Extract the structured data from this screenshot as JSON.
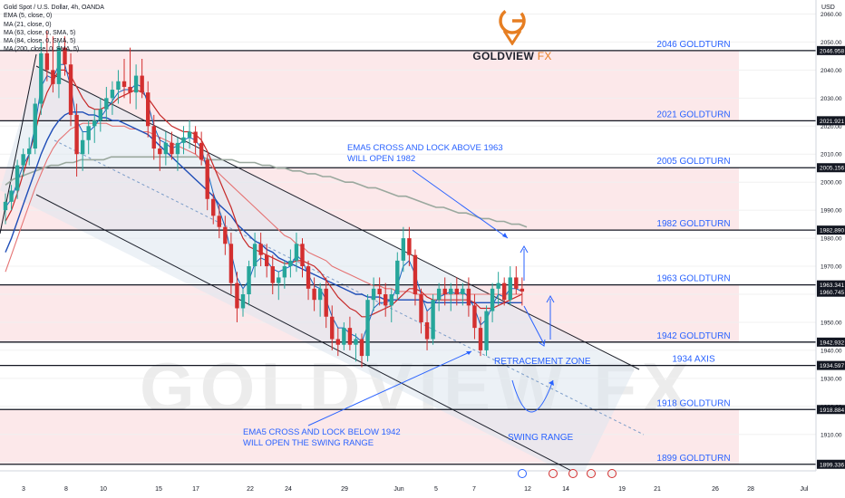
{
  "header": {
    "legend": [
      "Gold Spot / U.S. Dollar, 4h, OANDA",
      "EMA (5, close, 0)",
      "MA (21, close, 0)",
      "MA (63, close, 0, SMA, 5)",
      "MA (84, close, 0, SMA, 5)",
      "MA (200, close, 0, SMA, 5)"
    ],
    "currency": "USD",
    "brand_main": "GOLDVIEW",
    "brand_fx": "FX",
    "watermark": "GOLDVIEW FX"
  },
  "chart_data": {
    "type": "candlestick",
    "ylim": [
      1897,
      2065
    ],
    "x_tick_labels": [
      "3",
      "8",
      "10",
      "15",
      "17",
      "22",
      "24",
      "29",
      "Jun",
      "5",
      "7",
      "12",
      "14",
      "19",
      "21",
      "26",
      "28",
      "Jul"
    ],
    "y_tick_labels": [
      2060,
      2050,
      2040,
      2030,
      2020,
      2010,
      2000,
      1990,
      1980,
      1970,
      1960,
      1950,
      1940,
      1930,
      1920,
      1910,
      1900
    ],
    "levels": [
      {
        "label": "2046 GOLDTURN",
        "value": 2046.958,
        "tag": "2046.958"
      },
      {
        "label": "2021 GOLDTURN",
        "value": 2021.921,
        "tag": "2021.921"
      },
      {
        "label": "2005 GOLDTURN",
        "value": 2005.156,
        "tag": "2005.156"
      },
      {
        "label": "1982 GOLDTURN",
        "value": 1982.89,
        "tag": "1982.890"
      },
      {
        "label": "1963 GOLDTURN",
        "value": 1963.341,
        "tag": "1963.341"
      },
      {
        "label": "1942 GOLDTURN",
        "value": 1942.932,
        "tag": "1942.932"
      },
      {
        "label": "1934 AXIS",
        "value": 1934.597,
        "tag": "1934.597"
      },
      {
        "label": "1918 GOLDTURN",
        "value": 1918.884,
        "tag": "1918.884"
      },
      {
        "label": "1899 GOLDTURN",
        "value": 1899.336,
        "tag": "1899.336"
      }
    ],
    "current_price": {
      "value": 1960.745,
      "tag": "1960.745"
    },
    "annotations": [
      {
        "text": "EMA5 CROSS AND LOCK ABOVE 1963",
        "text2": "WILL OPEN 1982"
      },
      {
        "text": "RETRACEMENT ZONE"
      },
      {
        "text": "EMA5 CROSS AND LOCK BELOW 1942",
        "text2": "WILL OPEN THE SWING RANGE"
      },
      {
        "text": "SWING RANGE"
      }
    ],
    "candles": [
      [
        1990,
        1996,
        1985,
        1993
      ],
      [
        1993,
        1999,
        1990,
        1997
      ],
      [
        1997,
        2008,
        1994,
        2006
      ],
      [
        2006,
        2012,
        2002,
        2010
      ],
      [
        2010,
        2016,
        2006,
        2012
      ],
      [
        2012,
        2030,
        2010,
        2028
      ],
      [
        2028,
        2050,
        2024,
        2046
      ],
      [
        2046,
        2054,
        2036,
        2040
      ],
      [
        2040,
        2052,
        2032,
        2035
      ],
      [
        2035,
        2050,
        2030,
        2048
      ],
      [
        2048,
        2052,
        2038,
        2042
      ],
      [
        2042,
        2046,
        2020,
        2024
      ],
      [
        2024,
        2028,
        2002,
        2010
      ],
      [
        2010,
        2018,
        2004,
        2015
      ],
      [
        2015,
        2022,
        2010,
        2020
      ],
      [
        2020,
        2026,
        2014,
        2022
      ],
      [
        2022,
        2030,
        2018,
        2026
      ],
      [
        2026,
        2034,
        2022,
        2030
      ],
      [
        2030,
        2036,
        2024,
        2033
      ],
      [
        2033,
        2040,
        2028,
        2036
      ],
      [
        2036,
        2044,
        2030,
        2034
      ],
      [
        2034,
        2048,
        2028,
        2032
      ],
      [
        2032,
        2042,
        2026,
        2038
      ],
      [
        2038,
        2044,
        2030,
        2032
      ],
      [
        2032,
        2036,
        2016,
        2020
      ],
      [
        2020,
        2024,
        2008,
        2012
      ],
      [
        2012,
        2016,
        2004,
        2010
      ],
      [
        2010,
        2018,
        2006,
        2014
      ],
      [
        2014,
        2018,
        2008,
        2010
      ],
      [
        2010,
        2016,
        2004,
        2014
      ],
      [
        2014,
        2020,
        2010,
        2016
      ],
      [
        2016,
        2022,
        2012,
        2018
      ],
      [
        2018,
        2020,
        2010,
        2014
      ],
      [
        2014,
        2018,
        2006,
        2008
      ],
      [
        2008,
        2010,
        1990,
        1994
      ],
      [
        1994,
        1996,
        1985,
        1988
      ],
      [
        1988,
        1992,
        1980,
        1984
      ],
      [
        1984,
        1988,
        1974,
        1978
      ],
      [
        1978,
        1982,
        1960,
        1964
      ],
      [
        1964,
        1968,
        1950,
        1955
      ],
      [
        1955,
        1962,
        1952,
        1960
      ],
      [
        1960,
        1972,
        1956,
        1970
      ],
      [
        1970,
        1982,
        1966,
        1978
      ],
      [
        1978,
        1982,
        1970,
        1974
      ],
      [
        1974,
        1978,
        1966,
        1970
      ],
      [
        1970,
        1974,
        1960,
        1964
      ],
      [
        1964,
        1968,
        1958,
        1966
      ],
      [
        1966,
        1972,
        1962,
        1970
      ],
      [
        1970,
        1976,
        1966,
        1972
      ],
      [
        1972,
        1982,
        1968,
        1978
      ],
      [
        1978,
        1980,
        1966,
        1970
      ],
      [
        1970,
        1972,
        1958,
        1962
      ],
      [
        1962,
        1966,
        1954,
        1958
      ],
      [
        1958,
        1964,
        1952,
        1962
      ],
      [
        1962,
        1966,
        1948,
        1952
      ],
      [
        1952,
        1956,
        1940,
        1944
      ],
      [
        1944,
        1948,
        1938,
        1942
      ],
      [
        1942,
        1950,
        1940,
        1948
      ],
      [
        1948,
        1952,
        1940,
        1942
      ],
      [
        1942,
        1946,
        1936,
        1944
      ],
      [
        1944,
        1946,
        1934,
        1938
      ],
      [
        1938,
        1960,
        1936,
        1958
      ],
      [
        1958,
        1966,
        1954,
        1962
      ],
      [
        1962,
        1966,
        1956,
        1960
      ],
      [
        1960,
        1964,
        1952,
        1956
      ],
      [
        1956,
        1962,
        1950,
        1960
      ],
      [
        1960,
        1975,
        1958,
        1972
      ],
      [
        1972,
        1984,
        1968,
        1980
      ],
      [
        1980,
        1984,
        1970,
        1974
      ],
      [
        1974,
        1976,
        1956,
        1960
      ],
      [
        1960,
        1962,
        1946,
        1950
      ],
      [
        1950,
        1954,
        1940,
        1944
      ],
      [
        1944,
        1960,
        1942,
        1958
      ],
      [
        1958,
        1964,
        1954,
        1962
      ],
      [
        1962,
        1966,
        1956,
        1960
      ],
      [
        1960,
        1964,
        1954,
        1962
      ],
      [
        1962,
        1966,
        1956,
        1960
      ],
      [
        1960,
        1964,
        1956,
        1962
      ],
      [
        1962,
        1966,
        1952,
        1956
      ],
      [
        1956,
        1960,
        1944,
        1948
      ],
      [
        1948,
        1952,
        1938,
        1940
      ],
      [
        1940,
        1956,
        1938,
        1954
      ],
      [
        1954,
        1964,
        1950,
        1962
      ],
      [
        1962,
        1968,
        1956,
        1964
      ],
      [
        1964,
        1966,
        1956,
        1958
      ],
      [
        1958,
        1970,
        1956,
        1966
      ],
      [
        1966,
        1970,
        1960,
        1962
      ],
      [
        1962,
        1966,
        1956,
        1961
      ]
    ],
    "ema5": [
      1991,
      1994,
      2000,
      2006,
      2010,
      2020,
      2034,
      2038,
      2037,
      2042,
      2042,
      2034,
      2022,
      2018,
      2018,
      2020,
      2023,
      2026,
      2029,
      2032,
      2033,
      2033,
      2035,
      2034,
      2028,
      2020,
      2015,
      2014,
      2012,
      2013,
      2015,
      2016,
      2015,
      2012,
      2004,
      1996,
      1990,
      1984,
      1975,
      1966,
      1962,
      1965,
      1971,
      1973,
      1972,
      1969,
      1968,
      1969,
      1970,
      1974,
      1972,
      1967,
      1963,
      1962,
      1958,
      1952,
      1948,
      1948,
      1946,
      1945,
      1943,
      1949,
      1955,
      1957,
      1957,
      1958,
      1963,
      1970,
      1972,
      1967,
      1960,
      1954,
      1956,
      1959,
      1960,
      1961,
      1960,
      1961,
      1959,
      1955,
      1949,
      1951,
      1956,
      1960,
      1959,
      1962,
      1962,
      1961
    ],
    "ma21": [
      1986,
      1990,
      1996,
      2003,
      2010,
      2018,
      2026,
      2032,
      2036,
      2040,
      2040,
      2038,
      2034,
      2030,
      2027,
      2026,
      2026,
      2027,
      2028,
      2030,
      2031,
      2032,
      2033,
      2032,
      2030,
      2027,
      2024,
      2022,
      2020,
      2019,
      2018,
      2018,
      2017,
      2015,
      2011,
      2006,
      2001,
      1996,
      1991,
      1985,
      1980,
      1977,
      1976,
      1975,
      1974,
      1973,
      1972,
      1971,
      1971,
      1972,
      1972,
      1971,
      1970,
      1968,
      1965,
      1962,
      1959,
      1957,
      1955,
      1954,
      1952,
      1952,
      1953,
      1954,
      1955,
      1956,
      1958,
      1960,
      1962,
      1962,
      1961,
      1959,
      1958,
      1958,
      1958,
      1958,
      1958,
      1958,
      1958,
      1957,
      1955,
      1955,
      1955,
      1956,
      1957,
      1958,
      1959,
      1960
    ],
    "ma63": [
      1975,
      1980,
      1986,
      1992,
      1998,
      2004,
      2010,
      2015,
      2019,
      2022,
      2024,
      2025,
      2025,
      2025,
      2024,
      2024,
      2023,
      2023,
      2022,
      2022,
      2021,
      2020,
      2019,
      2018,
      2017,
      2015,
      2013,
      2011,
      2009,
      2007,
      2005,
      2003,
      2001,
      1999,
      1997,
      1995,
      1992,
      1990,
      1988,
      1985,
      1983,
      1981,
      1979,
      1978,
      1976,
      1975,
      1973,
      1972,
      1971,
      1970,
      1969,
      1968,
      1967,
      1966,
      1965,
      1964,
      1963,
      1962,
      1961,
      1960,
      1960,
      1959,
      1959,
      1959,
      1958,
      1958,
      1958,
      1958,
      1958,
      1958,
      1958,
      1957,
      1957,
      1957,
      1957,
      1957,
      1957,
      1957,
      1957,
      1957,
      1957,
      1957,
      1957,
      1957,
      1957,
      1957,
      1957,
      1957
    ],
    "ma84": [
      1968,
      1974,
      1980,
      1986,
      1992,
      1998,
      2003,
      2008,
      2012,
      2015,
      2017,
      2019,
      2020,
      2021,
      2021,
      2021,
      2021,
      2021,
      2020,
      2020,
      2020,
      2019,
      2019,
      2018,
      2018,
      2017,
      2016,
      2015,
      2014,
      2013,
      2012,
      2011,
      2010,
      2008,
      2007,
      2005,
      2003,
      2001,
      1999,
      1997,
      1995,
      1993,
      1991,
      1989,
      1987,
      1985,
      1983,
      1981,
      1980,
      1978,
      1977,
      1975,
      1974,
      1973,
      1972,
      1970,
      1969,
      1968,
      1967,
      1966,
      1965,
      1964,
      1963,
      1963,
      1962,
      1962,
      1961,
      1961,
      1961,
      1960,
      1960,
      1960,
      1960,
      1960,
      1960,
      1960,
      1960,
      1960,
      1960,
      1960,
      1960,
      1960,
      1960,
      1960,
      1960,
      1960,
      1960,
      1960
    ],
    "ma200": [
      1999,
      2001,
      2002,
      2003,
      2004,
      2005,
      2006,
      2006,
      2007,
      2007,
      2008,
      2008,
      2008,
      2008,
      2009,
      2009,
      2009,
      2009,
      2009,
      2009,
      2009,
      2009,
      2009,
      2009,
      2009,
      2009,
      2009,
      2008,
      2008,
      2008,
      2008,
      2007,
      2007,
      2007,
      2006,
      2006,
      2005,
      2005,
      2004,
      2004,
      2003,
      2003,
      2002,
      2002,
      2001,
      2000,
      2000,
      1999,
      1998,
      1998,
      1997,
      1996,
      1995,
      1995,
      1994,
      1993,
      1992,
      1991,
      1991,
      1990,
      1989,
      1989,
      1988,
      1987,
      1987,
      1986,
      1986,
      1985,
      1985,
      1984
    ]
  }
}
